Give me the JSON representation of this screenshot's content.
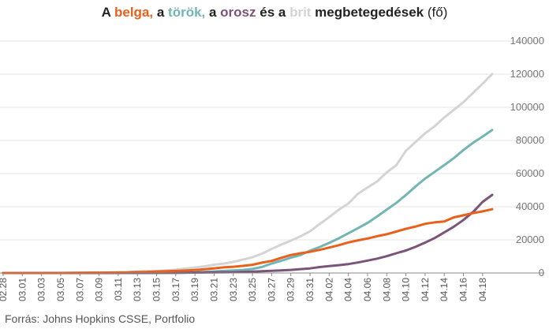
{
  "title_parts": [
    {
      "text": "A ",
      "color": "#222222"
    },
    {
      "text": "belga,",
      "color": "#e8601c"
    },
    {
      "text": " a ",
      "color": "#222222"
    },
    {
      "text": "török,",
      "color": "#72b5b5"
    },
    {
      "text": " a ",
      "color": "#222222"
    },
    {
      "text": "orosz",
      "color": "#7a5479"
    },
    {
      "text": " és a ",
      "color": "#222222"
    },
    {
      "text": "brit",
      "color": "#d4d4d4"
    },
    {
      "text": " megbetegedések",
      "color": "#222222"
    }
  ],
  "title_unit": "(fő)",
  "source": "Forrás: Johns Hopkins CSSE, Portfolio",
  "chart_data": {
    "type": "line",
    "x": [
      "02.28",
      "02.29",
      "03.01",
      "03.02",
      "03.03",
      "03.04",
      "03.05",
      "03.06",
      "03.07",
      "03.08",
      "03.09",
      "03.10",
      "03.11",
      "03.12",
      "03.13",
      "03.14",
      "03.15",
      "03.16",
      "03.17",
      "03.18",
      "03.19",
      "03.20",
      "03.21",
      "03.22",
      "03.23",
      "03.24",
      "03.25",
      "03.26",
      "03.27",
      "03.28",
      "03.29",
      "03.30",
      "03.31",
      "04.01",
      "04.02",
      "04.03",
      "04.04",
      "04.05",
      "04.06",
      "04.07",
      "04.08",
      "04.09",
      "04.10",
      "04.11",
      "04.12",
      "04.13",
      "04.14",
      "04.15",
      "04.16",
      "04.17",
      "04.18",
      "04.19"
    ],
    "xticklabels": [
      "02.28",
      "03.01",
      "03.03",
      "03.05",
      "03.07",
      "03.09",
      "03.11",
      "03.13",
      "03.15",
      "03.17",
      "03.19",
      "03.21",
      "03.23",
      "03.25",
      "03.27",
      "03.29",
      "03.31",
      "04.02",
      "04.04",
      "04.06",
      "04.08",
      "04.10",
      "04.12",
      "04.14",
      "04.16",
      "04.18"
    ],
    "ylim": [
      0,
      140000
    ],
    "yticks": [
      0,
      20000,
      40000,
      60000,
      80000,
      100000,
      120000,
      140000
    ],
    "yaxis_position": "right",
    "grid": true,
    "series": [
      {
        "name": "brit",
        "color": "#d4d4d4",
        "values": [
          20,
          20,
          40,
          40,
          50,
          90,
          120,
          160,
          210,
          280,
          320,
          380,
          460,
          590,
          800,
          1140,
          1140,
          1550,
          1960,
          2630,
          3270,
          4010,
          5020,
          5680,
          6650,
          8080,
          9530,
          11660,
          14540,
          17090,
          19520,
          22140,
          25150,
          29470,
          33720,
          38170,
          41900,
          47810,
          51610,
          55240,
          60730,
          65080,
          73760,
          78990,
          84280,
          88620,
          93870,
          98480,
          103100,
          108700,
          114200,
          120100
        ]
      },
      {
        "name": "török",
        "color": "#72b5b5",
        "values": [
          0,
          0,
          0,
          0,
          0,
          0,
          0,
          0,
          0,
          0,
          0,
          0,
          1,
          1,
          5,
          6,
          18,
          47,
          98,
          191,
          359,
          670,
          947,
          1240,
          1530,
          1870,
          2430,
          3630,
          5700,
          7400,
          9220,
          10830,
          13530,
          15680,
          18140,
          20920,
          23930,
          27070,
          30220,
          34110,
          38230,
          42280,
          47030,
          52170,
          56960,
          61050,
          65110,
          69390,
          74190,
          78550,
          82330,
          86300
        ]
      },
      {
        "name": "orosz",
        "color": "#7a5479",
        "values": [
          2,
          2,
          2,
          3,
          3,
          3,
          4,
          10,
          14,
          17,
          20,
          20,
          28,
          45,
          59,
          63,
          90,
          114,
          147,
          199,
          253,
          306,
          367,
          438,
          495,
          658,
          840,
          1036,
          1264,
          1534,
          1836,
          2337,
          2777,
          3548,
          4149,
          4731,
          5389,
          6343,
          7497,
          8672,
          10131,
          11917,
          13584,
          15770,
          18328,
          21102,
          24490,
          27938,
          32008,
          36793,
          42853,
          47121
        ]
      },
      {
        "name": "belga",
        "color": "#e8601c",
        "values": [
          1,
          1,
          2,
          2,
          8,
          13,
          23,
          50,
          109,
          169,
          200,
          239,
          267,
          314,
          559,
          689,
          886,
          1058,
          1243,
          1486,
          1795,
          2257,
          2815,
          3401,
          3743,
          4269,
          4937,
          6235,
          7284,
          9134,
          10836,
          11899,
          12775,
          13964,
          15348,
          16770,
          18431,
          19691,
          20814,
          22194,
          23403,
          24983,
          26667,
          28018,
          29647,
          30589,
          31119,
          33573,
          34809,
          36138,
          37183,
          38496
        ]
      }
    ]
  }
}
